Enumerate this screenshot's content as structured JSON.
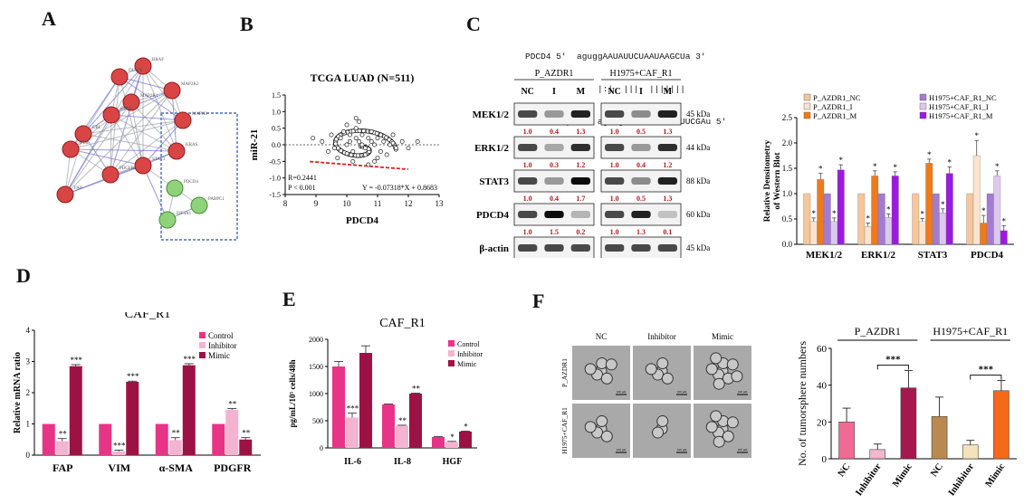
{
  "panels": {
    "A": "A",
    "B": "B",
    "C": "C",
    "D": "D",
    "E": "E",
    "F": "F"
  },
  "network": {
    "nodes": [
      {
        "id": "BRAF",
        "color": "red"
      },
      {
        "id": "DUSP6",
        "color": "red"
      },
      {
        "id": "MAP2K2",
        "color": "red"
      },
      {
        "id": "MAP2K1",
        "color": "red"
      },
      {
        "id": "CDH1",
        "color": "red"
      },
      {
        "id": "MAPK3",
        "color": "red"
      },
      {
        "id": "CBL",
        "color": "red"
      },
      {
        "id": "KRAS",
        "color": "red"
      },
      {
        "id": "VIM",
        "color": "red"
      },
      {
        "id": "PDGFRB",
        "color": "red"
      },
      {
        "id": "STAT3",
        "color": "red"
      },
      {
        "id": "FAP",
        "color": "red"
      },
      {
        "id": "PDCD4",
        "color": "green"
      },
      {
        "id": "PABPC1",
        "color": "green"
      },
      {
        "id": "EIF4A1",
        "color": "green"
      }
    ]
  },
  "chart_data": [
    {
      "panel": "B",
      "type": "scatter",
      "title": "TCGA LUAD (N=511)",
      "xlabel": "PDCD4",
      "ylabel": "miR-21",
      "xlim": [
        8,
        13
      ],
      "ylim": [
        -1.5,
        1.5
      ],
      "xticks": [
        "8",
        "9",
        "10",
        "11",
        "12",
        "13"
      ],
      "yticks": [
        "-1.5",
        "-1.0",
        "-0.5",
        "0.0",
        "0.5",
        "1.0",
        "1.5"
      ],
      "stats": [
        "R=0.2441",
        "P < 0.001"
      ],
      "equation": "Y = -0.07318*X + 0.8683",
      "fit": {
        "slope": -0.07318,
        "intercept": 0.8683,
        "x_range": [
          8.8,
          12.0
        ]
      },
      "x": [
        9.2,
        9.5,
        9.6,
        9.8,
        9.9,
        10.0,
        10.1,
        10.1,
        10.2,
        10.3,
        10.3,
        10.4,
        10.5,
        10.5,
        10.6,
        10.7,
        10.8,
        10.9,
        11.0,
        11.1,
        11.2,
        11.4,
        11.6,
        11.8,
        12.0,
        9.7,
        10.2,
        10.6,
        10.9,
        11.3,
        8.9,
        10.0,
        10.4,
        10.8,
        11.5,
        9.4,
        10.3,
        10.7,
        11.0,
        12.3
      ],
      "y": [
        0.1,
        0.3,
        -0.1,
        0.2,
        0.4,
        0.0,
        0.1,
        0.3,
        -0.2,
        0.2,
        0.5,
        0.1,
        0.0,
        0.3,
        -0.1,
        0.2,
        0.1,
        0.0,
        0.2,
        -0.2,
        0.1,
        0.0,
        -0.1,
        0.1,
        -0.1,
        -0.4,
        -0.5,
        -0.3,
        -0.5,
        -0.3,
        0.2,
        0.6,
        0.7,
        0.4,
        0.3,
        -0.2,
        0.8,
        -0.6,
        -0.4,
        0.1
      ]
    },
    {
      "panel": "C",
      "type": "bar",
      "ylabel": "Relative Densitometry of Western Blot",
      "ylim": [
        0,
        2.5
      ],
      "yticks": [
        "0.0",
        "0.5",
        "1.0",
        "1.5",
        "2.0",
        "2.5"
      ],
      "categories": [
        "MEK1/2",
        "ERK1/2",
        "STAT3",
        "PDCD4"
      ],
      "series": [
        {
          "name": "P_AZDR1_NC",
          "color": "#f6c79b",
          "values": [
            1.0,
            1.0,
            1.0,
            1.0
          ],
          "err": [
            0,
            0,
            0,
            0
          ]
        },
        {
          "name": "P_AZDR1_I",
          "color": "#fbe3cc",
          "values": [
            0.45,
            0.35,
            0.45,
            1.75
          ],
          "err": [
            0.07,
            0.07,
            0.06,
            0.3
          ]
        },
        {
          "name": "P_AZDR1_M",
          "color": "#ef7a1a",
          "values": [
            1.28,
            1.35,
            1.6,
            0.42
          ],
          "err": [
            0.12,
            0.1,
            0.08,
            0.15
          ]
        },
        {
          "name": "H1975+CAF_R1_NC",
          "color": "#a37bd3",
          "values": [
            1.0,
            1.0,
            1.0,
            1.0
          ],
          "err": [
            0,
            0,
            0,
            0
          ]
        },
        {
          "name": "H1975+CAF_R1_I",
          "color": "#ddc8ef",
          "values": [
            0.45,
            0.53,
            0.62,
            1.35
          ],
          "err": [
            0.07,
            0.07,
            0.08,
            0.1
          ]
        },
        {
          "name": "H1975+CAF_R1_M",
          "color": "#9b1ae0",
          "values": [
            1.47,
            1.35,
            1.4,
            0.27
          ],
          "err": [
            0.1,
            0.08,
            0.13,
            0.1
          ]
        }
      ],
      "star": "*"
    },
    {
      "panel": "D",
      "type": "bar",
      "title": "CAF_R1",
      "ylabel": "Relative mRNA ratio",
      "ylim": [
        0,
        4
      ],
      "yticks": [
        "0",
        "1",
        "2",
        "3",
        "4"
      ],
      "categories": [
        "FAP",
        "VIM",
        "α-SMA",
        "PDGFR"
      ],
      "series": [
        {
          "name": "Control",
          "color": "#e83487",
          "values": [
            1.0,
            1.0,
            1.0,
            1.0
          ],
          "err": [
            0,
            0,
            0,
            0
          ],
          "sig": [
            "",
            "",
            "",
            ""
          ]
        },
        {
          "name": "Inhibitor",
          "color": "#f5b3d2",
          "values": [
            0.45,
            0.12,
            0.48,
            1.45
          ],
          "err": [
            0.08,
            0.04,
            0.08,
            0.04
          ],
          "sig": [
            "**",
            "***",
            "**",
            "**"
          ]
        },
        {
          "name": "Mimic",
          "color": "#9c1245",
          "values": [
            2.85,
            2.35,
            2.88,
            0.5
          ],
          "err": [
            0.05,
            0.02,
            0.05,
            0.06
          ],
          "sig": [
            "***",
            "***",
            "***",
            "**"
          ]
        }
      ]
    },
    {
      "panel": "E",
      "type": "bar",
      "title": "CAF_R1",
      "ylabel": "pg/mL/10⁵ cells/48h",
      "ylim": [
        0,
        2000
      ],
      "yticks": [
        "0",
        "500",
        "1000",
        "1500",
        "2000"
      ],
      "categories": [
        "IL-6",
        "IL-8",
        "HGF"
      ],
      "series": [
        {
          "name": "Control",
          "color": "#e83487",
          "values": [
            1500,
            800,
            200
          ],
          "err": [
            90,
            8,
            8
          ],
          "sig": [
            "",
            "",
            ""
          ]
        },
        {
          "name": "Inhibitor",
          "color": "#f5b3d2",
          "values": [
            560,
            410,
            110
          ],
          "err": [
            80,
            8,
            10
          ],
          "sig": [
            "***",
            "**",
            "*"
          ]
        },
        {
          "name": "Mimic",
          "color": "#9c1245",
          "values": [
            1750,
            1000,
            300
          ],
          "err": [
            130,
            10,
            10
          ],
          "sig": [
            "",
            "**",
            "*"
          ]
        }
      ]
    },
    {
      "panel": "F",
      "type": "bar",
      "ylabel": "No. of tumorsphere numbers",
      "ylim": [
        0,
        60
      ],
      "yticks": [
        "0",
        "20",
        "40",
        "60"
      ],
      "groups": [
        "P_AZDR1",
        "H1975+CAF_R1"
      ],
      "categories": [
        "NC",
        "Inhibitor",
        "Mimic",
        "NC",
        "Inhibitor",
        "Mimic"
      ],
      "values": [
        20,
        5,
        38.5,
        23,
        7.5,
        37
      ],
      "err": [
        7.5,
        3,
        9.5,
        10.5,
        2.5,
        5.5
      ],
      "colors": [
        "#f06b94",
        "#f2b6cf",
        "#a5174f",
        "#b98a50",
        "#f3e3b8",
        "#f46a17"
      ],
      "sig": "***"
    }
  ],
  "blot": {
    "sequence": {
      "line1": "PDCD4 5'  aguggAAUAUUCUAAUAAGCUa 3'",
      "line2": "|:|  |||  |||||||",
      "line3": "miR-21-5p 3'  aguugUAGUCAGACUAUUCGAu 5'"
    },
    "groups": [
      "P_AZDR1",
      "H1975+CAF_R1"
    ],
    "lanes": [
      "NC",
      "I",
      "M",
      "NC",
      "I",
      "M"
    ],
    "rows": [
      {
        "label": "MEK1/2",
        "kda": "45 kDa",
        "vals": [
          "1.0",
          "0.4",
          "1.3",
          "1.0",
          "0.5",
          "1.3"
        ]
      },
      {
        "label": "ERK1/2",
        "kda": "44 kDa",
        "vals": [
          "1.0",
          "0.3",
          "1.2",
          "1.0",
          "0.4",
          "1.2"
        ]
      },
      {
        "label": "STAT3",
        "kda": "88 kDa",
        "vals": [
          "1.0",
          "0.4",
          "1.7",
          "1.0",
          "0.5",
          "1.3"
        ]
      },
      {
        "label": "PDCD4",
        "kda": "60 kDa",
        "vals": [
          "1.0",
          "1.5",
          "0.2",
          "1.0",
          "1.3",
          "0.1"
        ]
      },
      {
        "label": "β-actin",
        "kda": "45 kDa",
        "vals": []
      }
    ],
    "bands": [
      [
        1.0,
        0.4,
        1.3,
        1.0,
        0.5,
        1.3
      ],
      [
        1.0,
        0.3,
        1.2,
        1.0,
        0.4,
        1.2
      ],
      [
        1.0,
        0.4,
        1.7,
        1.0,
        0.5,
        1.3
      ],
      [
        1.0,
        1.5,
        0.2,
        1.0,
        1.3,
        0.1
      ],
      [
        1.0,
        1.0,
        1.0,
        1.0,
        1.0,
        1.0
      ]
    ]
  },
  "micrographs": {
    "columns": [
      "NC",
      "Inhibitor",
      "Mimic"
    ],
    "rows": [
      "P_AZDR1",
      "H1975+CAF_R1"
    ],
    "scale": "100 μm"
  }
}
